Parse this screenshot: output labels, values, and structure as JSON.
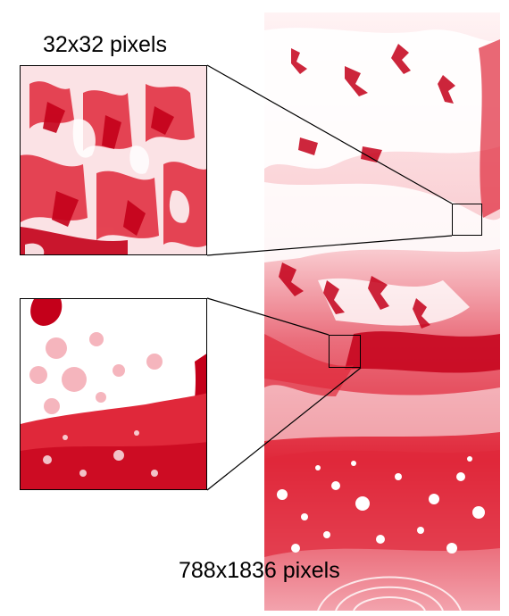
{
  "labels": {
    "top": "32x32 pixels",
    "bottom": "788x1836 pixels"
  },
  "colors": {
    "ink": "#000000",
    "deep_red": "#c4001a",
    "red": "#e0283a",
    "pink": "#f3a3ad",
    "white": "#ffffff"
  }
}
